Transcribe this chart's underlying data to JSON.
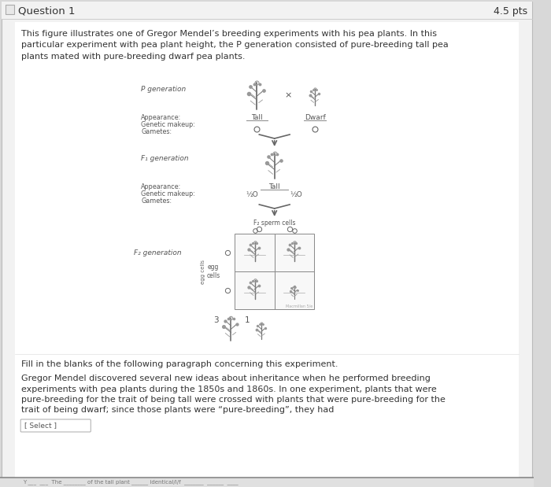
{
  "bg_outer": "#d8d8d8",
  "bg_card": "#f2f2f2",
  "bg_white": "#ffffff",
  "border_color": "#bbbbbb",
  "header_border": "#cccccc",
  "title_text": "Question 1",
  "pts_text": "4.5 pts",
  "title_fontsize": 9.5,
  "pts_fontsize": 9,
  "body_fontsize": 8,
  "small_fontsize": 6.5,
  "para1": "This figure illustrates one of Gregor Mendel’s breeding experiments with his pea plants. In this\nparticular experiment with pea plant height, the P generation consisted of pure-breeding tall pea\nplants mated with pure-breeding dwarf pea plants.",
  "fill_in_label": "Fill in the blanks of the following paragraph concerning this experiment.",
  "para2_line1": "Gregor Mendel discovered several new ideas about inheritance when he performed breeding",
  "para2_line2": "experiments with pea plants during the 1850s and 1860s. In one experiment, plants that were",
  "para2_line3": "pure-breeding for the trait of being tall were crossed with plants that were pure-breeding for the",
  "para2_line4": "trait of being dwarf; since those plants were “pure-breeding”, they had",
  "select_label": "[ Select ]",
  "bottom_text": "Y ___  ___  The ________ of the tall plant ______ identical/l/f  _______  ______  ____",
  "checkbox_color": "#e8e8e8",
  "checkbox_border": "#aaaaaa",
  "plant_color": "#777777",
  "leaf_color": "#999999",
  "arrow_color": "#666666"
}
